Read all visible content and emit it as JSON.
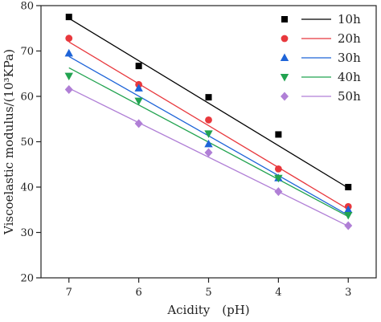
{
  "chart_data": {
    "type": "scatter",
    "title": "",
    "xlabel": "Acidity　(pH)",
    "ylabel": "Viscoelastic modulus/(10³KPa)",
    "x_reversed": true,
    "xlim": [
      7.4,
      2.6
    ],
    "ylim": [
      20,
      80
    ],
    "x_ticks": [
      7,
      6,
      5,
      4,
      3
    ],
    "x_tick_labels": [
      "7",
      "6",
      "5",
      "4",
      "3"
    ],
    "y_ticks": [
      20,
      30,
      40,
      50,
      60,
      70,
      80
    ],
    "y_tick_labels": [
      "20",
      "30",
      "40",
      "50",
      "60",
      "70",
      "80"
    ],
    "grid": false,
    "legend_position": "top-right",
    "series": [
      {
        "name": "10h",
        "marker": "square",
        "color": "#000000",
        "line_color": "#000000",
        "x": [
          7,
          6,
          5,
          4,
          3
        ],
        "y": [
          77.5,
          66.7,
          59.8,
          51.6,
          40.0
        ],
        "fit": [
          77.2,
          39.8
        ]
      },
      {
        "name": "20h",
        "marker": "circle",
        "color": "#e8383d",
        "line_color": "#e8383d",
        "x": [
          7,
          6,
          5,
          4,
          3
        ],
        "y": [
          72.8,
          62.6,
          54.8,
          44.0,
          35.7
        ],
        "fit": [
          72.0,
          35.1
        ]
      },
      {
        "name": "30h",
        "marker": "triangle-up",
        "color": "#1e64d8",
        "line_color": "#1e64d8",
        "x": [
          7,
          6,
          5,
          4,
          3
        ],
        "y": [
          69.5,
          61.8,
          49.5,
          42.0,
          35.0
        ],
        "fit": [
          68.8,
          33.8
        ]
      },
      {
        "name": "40h",
        "marker": "triangle-down",
        "color": "#22a350",
        "line_color": "#22a350",
        "x": [
          7,
          6,
          5,
          4,
          3
        ],
        "y": [
          64.5,
          59.0,
          51.8,
          42.0,
          33.8
        ],
        "fit": [
          66.3,
          33.5
        ]
      },
      {
        "name": "50h",
        "marker": "diamond",
        "color": "#b07fd6",
        "line_color": "#b07fd6",
        "x": [
          7,
          6,
          5,
          4,
          3
        ],
        "y": [
          61.5,
          54.0,
          47.6,
          39.0,
          31.5
        ],
        "fit": [
          61.8,
          31.4
        ]
      }
    ]
  }
}
